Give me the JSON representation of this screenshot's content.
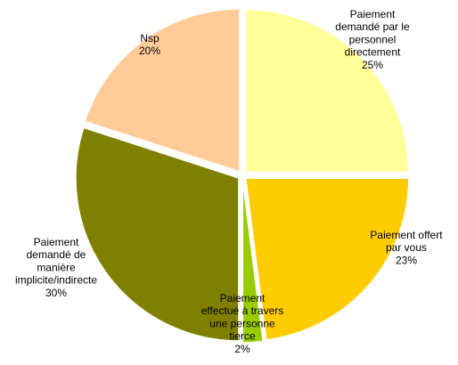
{
  "chart_data": {
    "type": "pie",
    "title": "",
    "start_angle_deg": 0,
    "direction": "clockwise",
    "exploded": true,
    "slices": [
      {
        "label_lines": [
          "Paiement",
          "demandé par le",
          "personnel",
          "directement"
        ],
        "value": 25,
        "value_label": "25%",
        "color": "#FFFF99"
      },
      {
        "label_lines": [
          "Paiement offert",
          "par vous"
        ],
        "value": 23,
        "value_label": "23%",
        "color": "#FFCC00"
      },
      {
        "label_lines": [
          "Paiement",
          "effectué à travers",
          "une personne",
          "tierce"
        ],
        "value": 2,
        "value_label": "2%",
        "color": "#99CC00"
      },
      {
        "label_lines": [
          "Paiement",
          "demandé de",
          "manière",
          "implicite/indirecte"
        ],
        "value": 30,
        "value_label": "30%",
        "color": "#808000"
      },
      {
        "label_lines": [
          "Nsp"
        ],
        "value": 20,
        "value_label": "20%",
        "color": "#FFCC99"
      }
    ]
  }
}
